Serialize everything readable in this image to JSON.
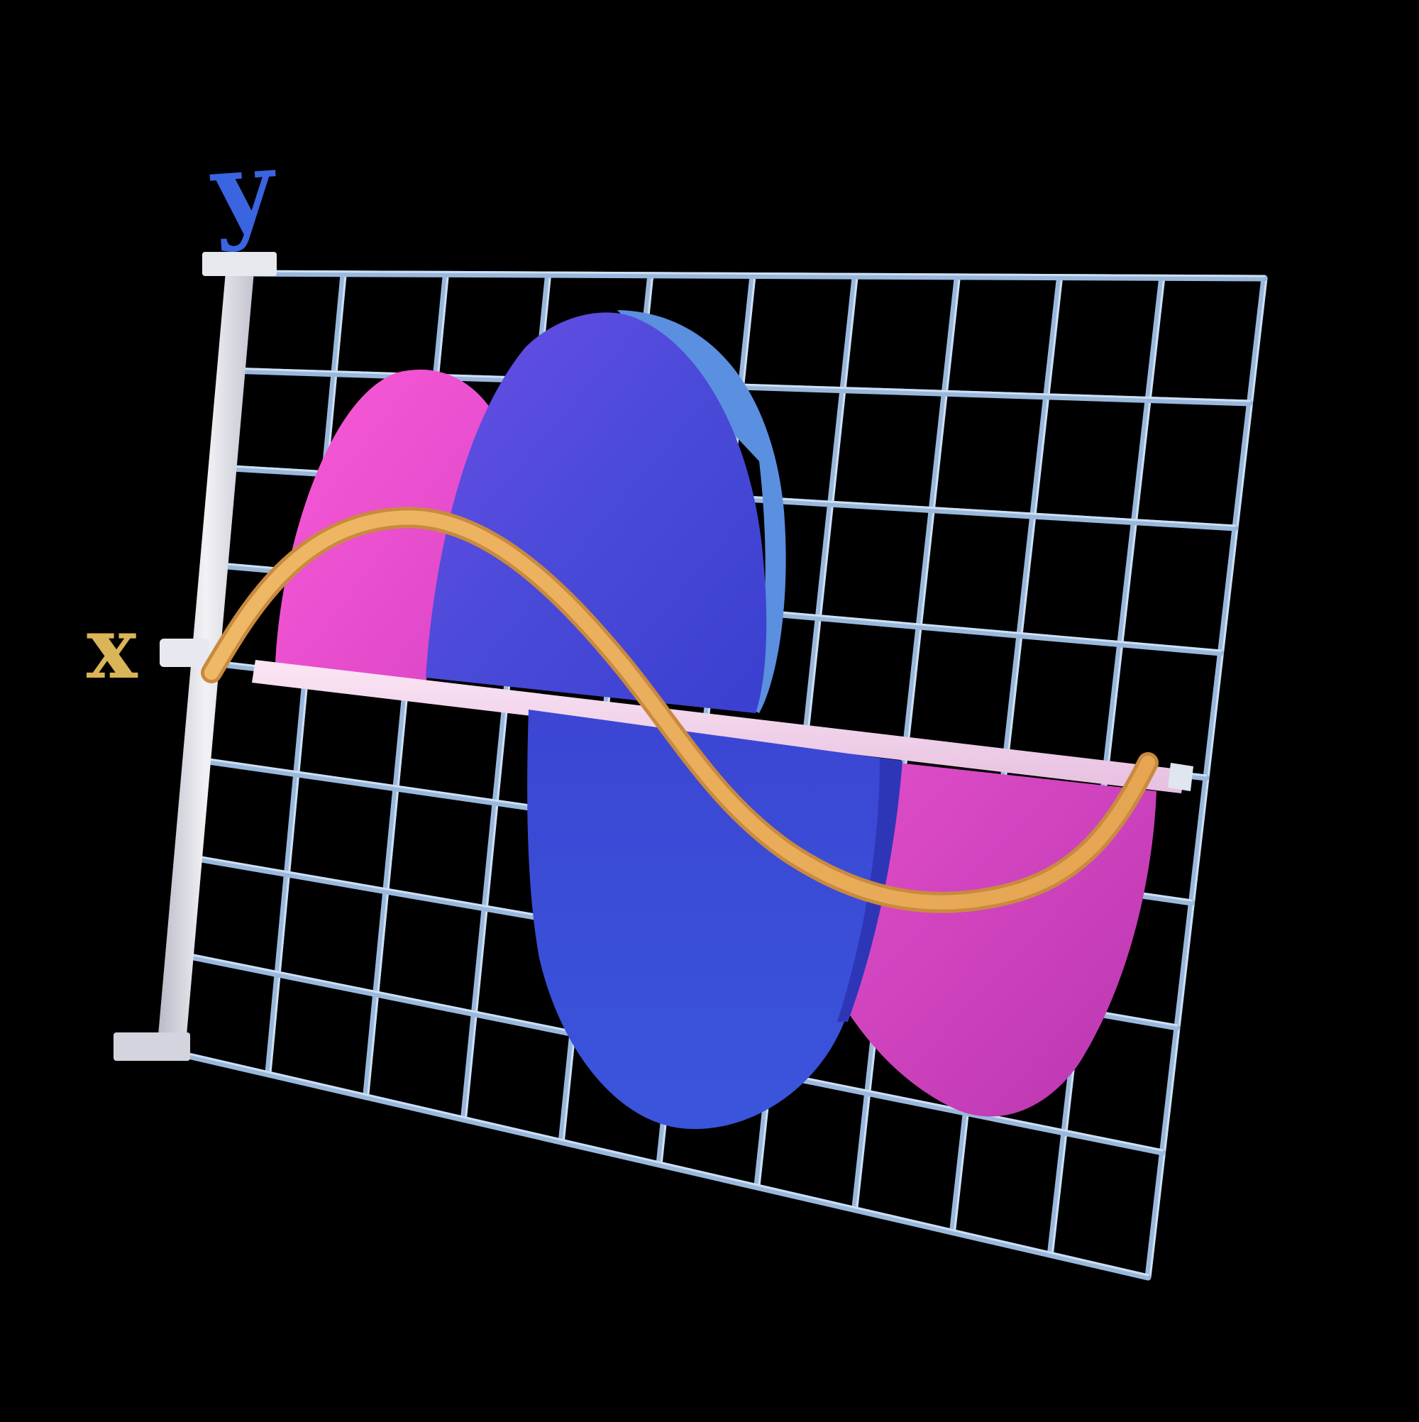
{
  "scene": {
    "axis_labels": {
      "y": "y",
      "x": "x"
    },
    "colors": {
      "background": "#000000",
      "grid_line": "#9ab8dc",
      "grid_line_highlight": "#cfe0f2",
      "axis_bar": "#e4e4ec",
      "axis_bar_shadow": "#a9a9b8",
      "x_axis_band": "#f3d6ec",
      "pink_shape": "#f04fd2",
      "pink_shape_dark": "#c43ab8",
      "blue_shape": "#4a45d8",
      "blue_shape_edge": "#5a90e0",
      "blue_shape_lower": "#3a4bd4",
      "curve": "#e9ad5c",
      "y_label": "#3a64e0",
      "x_label": "#d9b557"
    },
    "icon": "3d-sine-wave-graph-icon"
  }
}
